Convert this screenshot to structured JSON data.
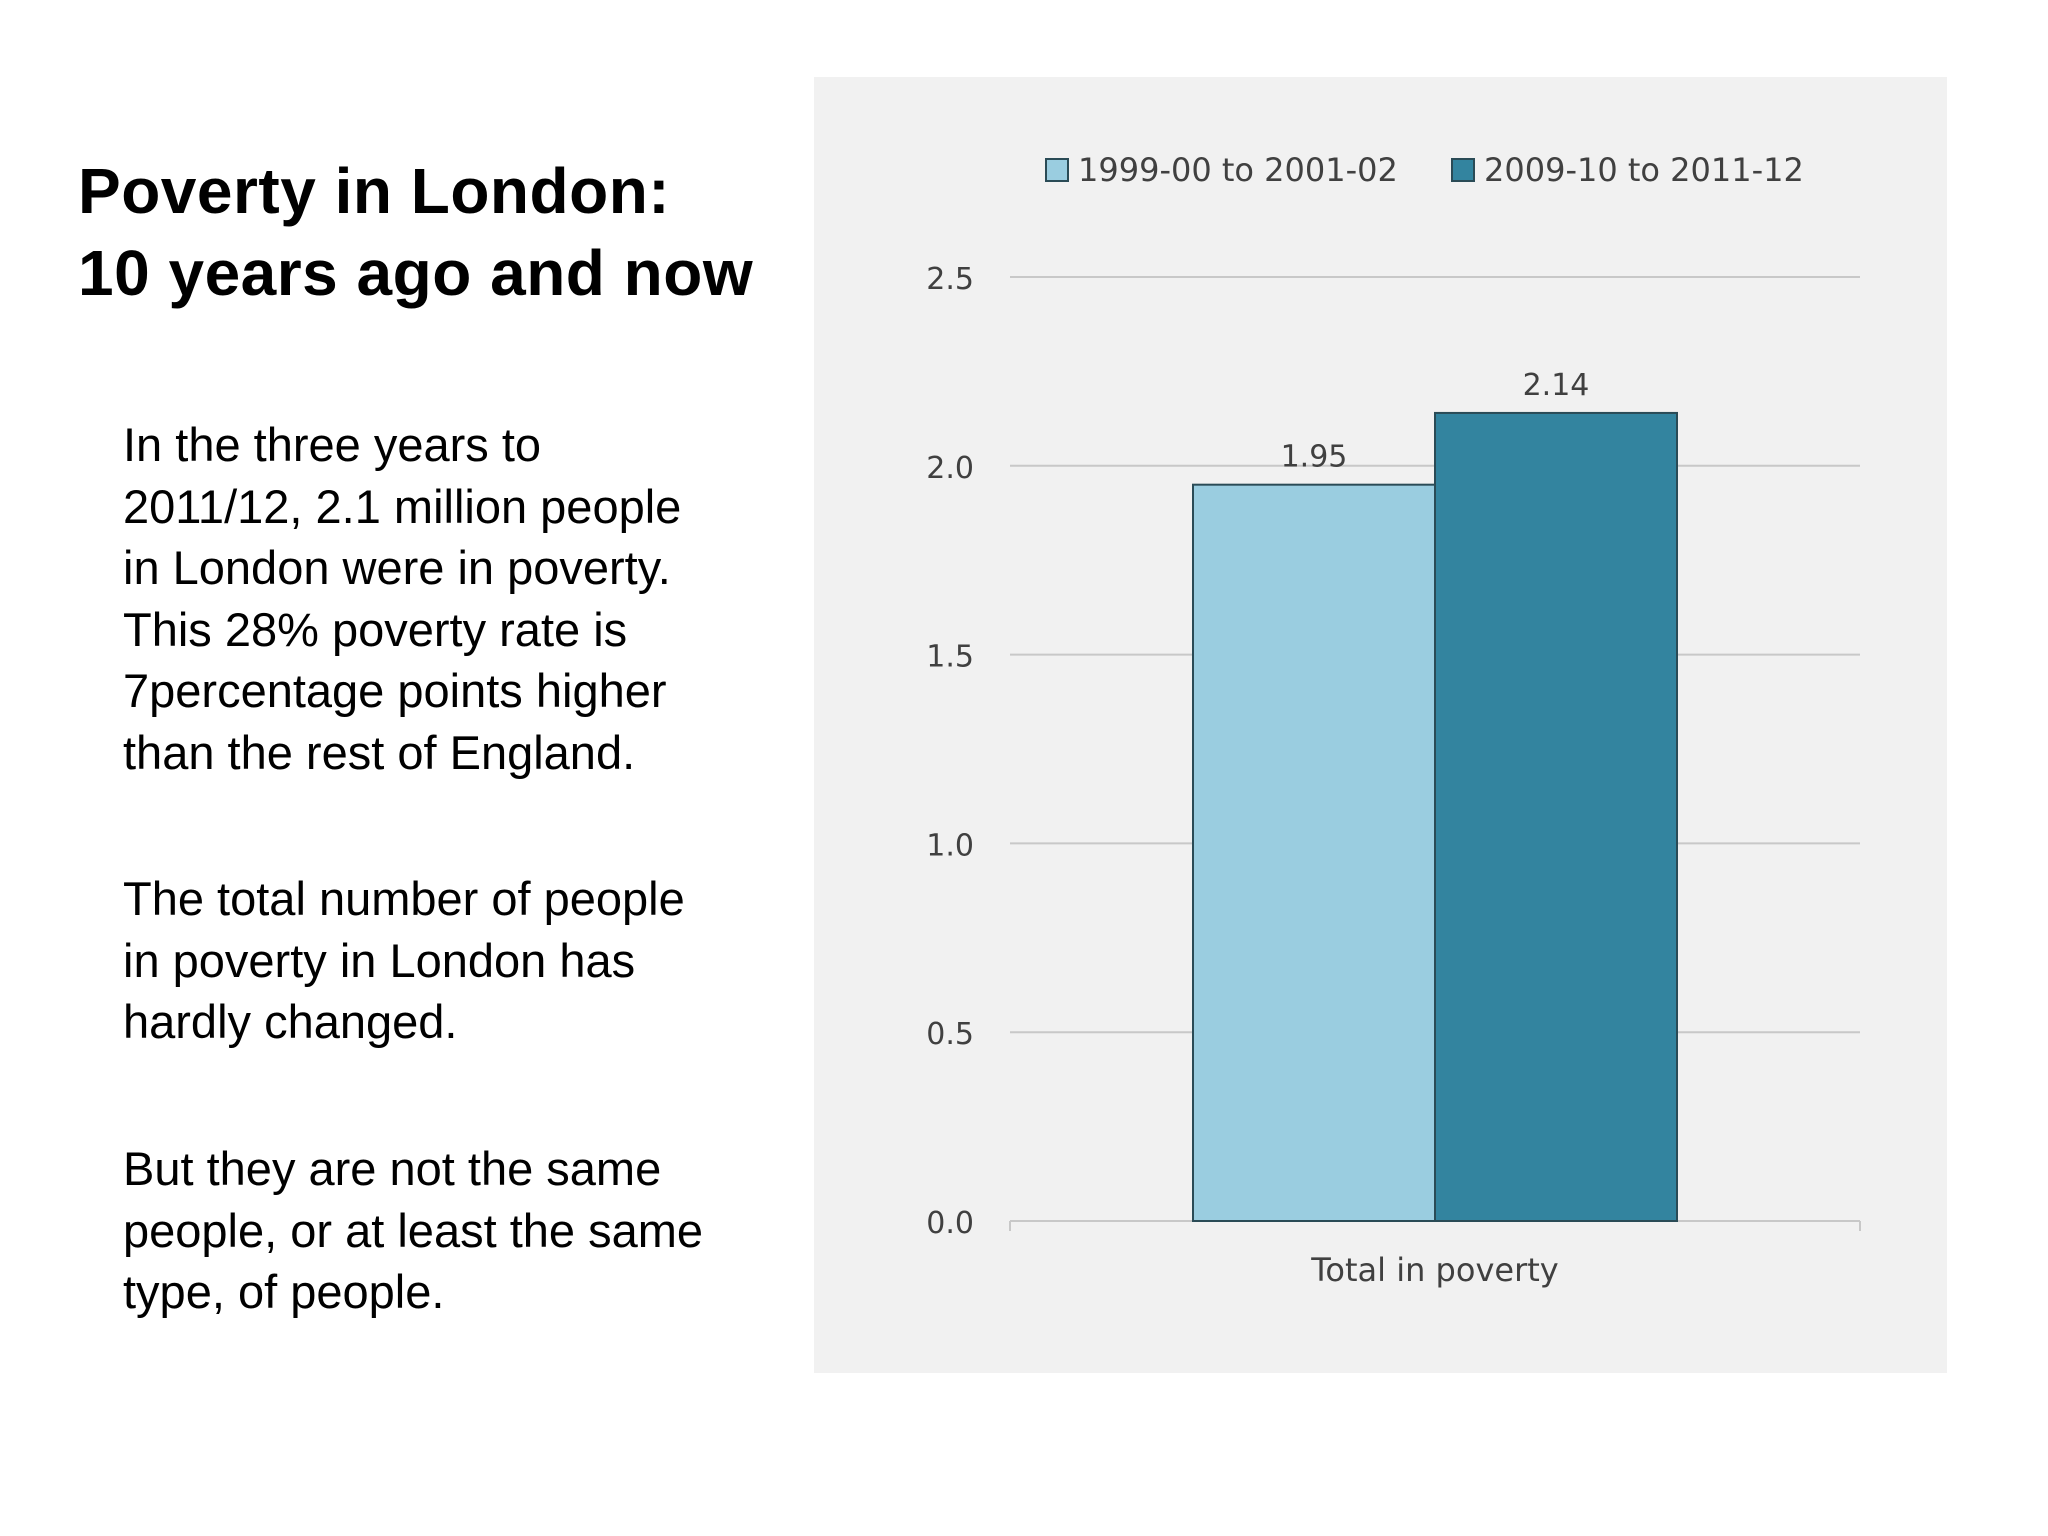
{
  "slide": {
    "title_lines": [
      "Poverty in London:",
      "10 years ago and now"
    ],
    "paragraphs": [
      {
        "lines": [
          "In the three years to",
          "2011/12, 2.1 million people",
          "in London were in poverty.",
          "This 28% poverty rate is",
          "7percentage points higher",
          "than the rest of England."
        ]
      },
      {
        "lines": [
          "The total number of people",
          "in poverty in London has",
          "hardly changed."
        ]
      },
      {
        "lines": [
          "But they are not the same",
          "people, or at least the same",
          "type, of people."
        ]
      }
    ]
  },
  "chart_data": {
    "type": "bar",
    "categories": [
      "Total in poverty"
    ],
    "series": [
      {
        "name": "1999-00 to 2001-02",
        "values": [
          1.95
        ],
        "labels": [
          "1.95"
        ],
        "color": "#9acde0"
      },
      {
        "name": "2009-10 to 2011-12",
        "values": [
          2.14
        ],
        "labels": [
          "2.14"
        ],
        "color": "#33849f"
      }
    ],
    "title": "",
    "xlabel": "",
    "ylabel": "",
    "ylim": [
      0,
      2.5
    ],
    "yticks": [
      "0.0",
      "0.5",
      "1.0",
      "1.5",
      "2.0",
      "2.5"
    ],
    "grid": true,
    "legend_position": "top"
  },
  "colors": {
    "panel_background": "#f1f1f1",
    "gridline": "#c8c8c8",
    "bar_outline": "#2a4b56",
    "axis_text": "#404040"
  }
}
